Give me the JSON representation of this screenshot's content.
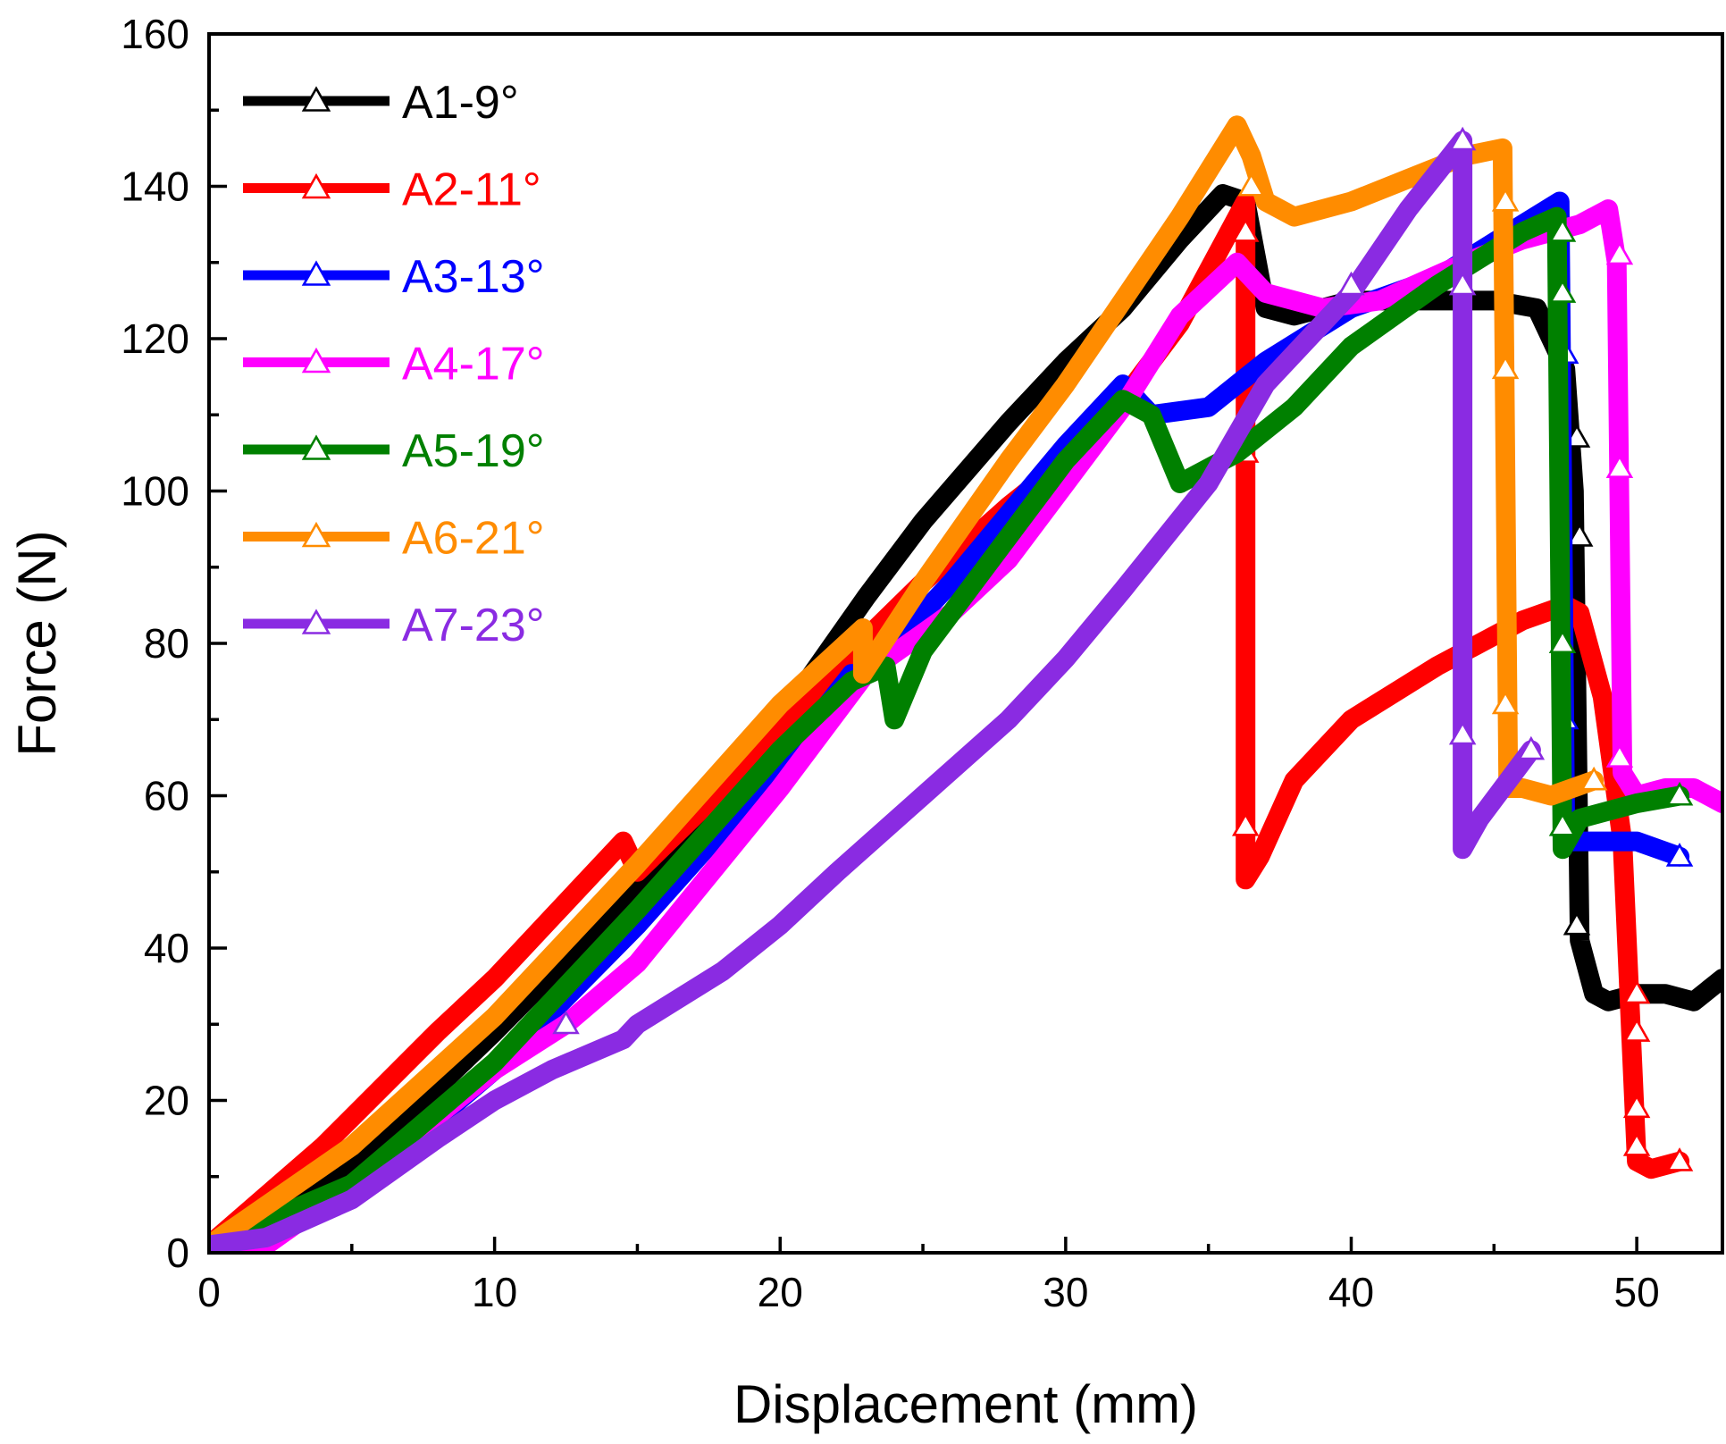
{
  "chart_data": {
    "type": "line",
    "title": "",
    "xlabel": "Displacement (mm)",
    "ylabel": "Force (N)",
    "xlim": [
      0,
      53
    ],
    "ylim": [
      0,
      160
    ],
    "xticks": [
      0,
      10,
      20,
      30,
      40,
      50
    ],
    "xtick_labels": [
      "0",
      "10",
      "20",
      "30",
      "40",
      "50"
    ],
    "yticks": [
      0,
      20,
      40,
      60,
      80,
      100,
      120,
      140,
      160
    ],
    "ytick_labels": [
      "0",
      "20",
      "40",
      "60",
      "80",
      "100",
      "120",
      "140",
      "160"
    ],
    "legend_position": "top-left",
    "marker": "open-triangle",
    "series": [
      {
        "name": "A1-9°",
        "color": "#000000",
        "x": [
          0,
          5,
          10,
          15,
          20,
          23,
          25,
          28,
          30,
          32,
          34,
          35.5,
          36.3,
          37,
          38,
          40,
          42,
          45,
          46.5,
          47.5,
          47.8,
          48,
          48.5,
          49,
          50,
          51,
          52,
          53
        ],
        "y": [
          1,
          11,
          29,
          48,
          70,
          86,
          96,
          109,
          117,
          124,
          133,
          139,
          138,
          124,
          123,
          125,
          125,
          125,
          124,
          116,
          100,
          41,
          34,
          33,
          34,
          34,
          33,
          36
        ],
        "markers": [
          [
            36.3,
            135
          ],
          [
            47.9,
            107
          ],
          [
            48,
            94
          ],
          [
            47.9,
            43
          ]
        ]
      },
      {
        "name": "A2-11°",
        "color": "#ff0000",
        "x": [
          0,
          4,
          8,
          10,
          12,
          14.5,
          15,
          18,
          20,
          22,
          25,
          28,
          30,
          32,
          34,
          36.3,
          36.3,
          36.8,
          38,
          40,
          43,
          46,
          47.5,
          48,
          48.8,
          49.5,
          50,
          50.5,
          51.5
        ],
        "y": [
          1,
          14,
          29,
          36,
          44,
          54,
          50,
          61,
          69,
          77,
          88,
          98,
          104,
          112,
          122,
          138,
          49,
          52,
          62,
          70,
          77,
          83,
          85,
          84,
          73,
          54,
          12,
          11,
          12
        ],
        "markers": [
          [
            36.3,
            134
          ],
          [
            36.3,
            105
          ],
          [
            36.3,
            56
          ],
          [
            50,
            34
          ],
          [
            50,
            29
          ],
          [
            50,
            19
          ],
          [
            50,
            14
          ],
          [
            51.5,
            12
          ]
        ]
      },
      {
        "name": "A3-13°",
        "color": "#0000ff",
        "x": [
          0,
          5,
          10,
          15,
          20,
          22.5,
          23,
          26,
          28,
          30,
          32,
          33,
          35,
          37,
          40,
          43,
          46,
          47.3,
          47.5,
          48,
          50,
          51.5
        ],
        "y": [
          1,
          8,
          24,
          43,
          64,
          76,
          76,
          88,
          97,
          106,
          114,
          110,
          111,
          117,
          124,
          128,
          135,
          138,
          54,
          54,
          54,
          52
        ],
        "markers": [
          [
            47.5,
            118
          ],
          [
            47.5,
            70
          ],
          [
            47.5,
            56
          ],
          [
            51.5,
            52
          ]
        ]
      },
      {
        "name": "A4-17°",
        "color": "#ff00ff",
        "x": [
          0,
          2,
          5,
          10,
          12.5,
          15,
          20,
          23,
          26,
          28,
          30,
          32,
          34,
          36,
          37,
          39,
          41,
          44,
          46,
          48,
          49,
          49.3,
          49.5,
          50,
          51,
          52,
          53
        ],
        "y": [
          1,
          1,
          9,
          24,
          30,
          38,
          61,
          76,
          84,
          91,
          101,
          111,
          123,
          130,
          126,
          124,
          125,
          130,
          133,
          135,
          137,
          130,
          63,
          60,
          61,
          61,
          59
        ],
        "markers": [
          [
            49.4,
            131
          ],
          [
            49.4,
            103
          ],
          [
            49.4,
            65
          ]
        ]
      },
      {
        "name": "A5-19°",
        "color": "#008000",
        "x": [
          0,
          5,
          10,
          15,
          20,
          22.5,
          23.7,
          24,
          25,
          28,
          30,
          32,
          33,
          34,
          36,
          38,
          40,
          43,
          46,
          47.2,
          47.4,
          48,
          50,
          51.5
        ],
        "y": [
          1,
          9,
          25,
          45,
          66,
          75,
          77,
          70,
          79,
          94,
          104,
          112,
          110,
          101,
          105,
          111,
          119,
          127,
          134,
          136,
          53,
          57,
          59,
          60
        ],
        "markers": [
          [
            47.4,
            134
          ],
          [
            47.4,
            126
          ],
          [
            47.4,
            80
          ],
          [
            47.4,
            56
          ],
          [
            51.5,
            60
          ]
        ]
      },
      {
        "name": "A6-21°",
        "color": "#ff8c00",
        "x": [
          0,
          5,
          10,
          15,
          20,
          22.9,
          22.9,
          25,
          28,
          30,
          32,
          34,
          36,
          36.5,
          37,
          38,
          40,
          42,
          44,
          45.3,
          45.5,
          46,
          47,
          48.5
        ],
        "y": [
          1,
          14,
          31,
          51,
          72,
          82,
          76,
          88,
          104,
          114,
          125,
          136,
          148,
          144,
          138,
          136,
          138,
          141,
          144,
          145,
          61,
          61,
          60,
          62
        ],
        "markers": [
          [
            36.5,
            140
          ],
          [
            45.4,
            138
          ],
          [
            45.4,
            116
          ],
          [
            45.4,
            72
          ],
          [
            48.5,
            62
          ]
        ]
      },
      {
        "name": "A7-23°",
        "color": "#8a2be2",
        "x": [
          0,
          2,
          5,
          8,
          10,
          12,
          14.5,
          15,
          18,
          20,
          22,
          25,
          28,
          30,
          32,
          35,
          37,
          40,
          42,
          43.9,
          43.9,
          44.5,
          46.3
        ],
        "y": [
          1,
          2,
          7,
          15,
          20,
          24,
          28,
          30,
          37,
          43,
          50,
          60,
          70,
          78,
          87,
          101,
          114,
          126,
          137,
          146,
          53,
          57,
          66
        ],
        "markers": [
          [
            12.5,
            30
          ],
          [
            40,
            127
          ],
          [
            43.9,
            146
          ],
          [
            43.9,
            127
          ],
          [
            43.9,
            68
          ],
          [
            46.3,
            66
          ]
        ]
      }
    ]
  }
}
